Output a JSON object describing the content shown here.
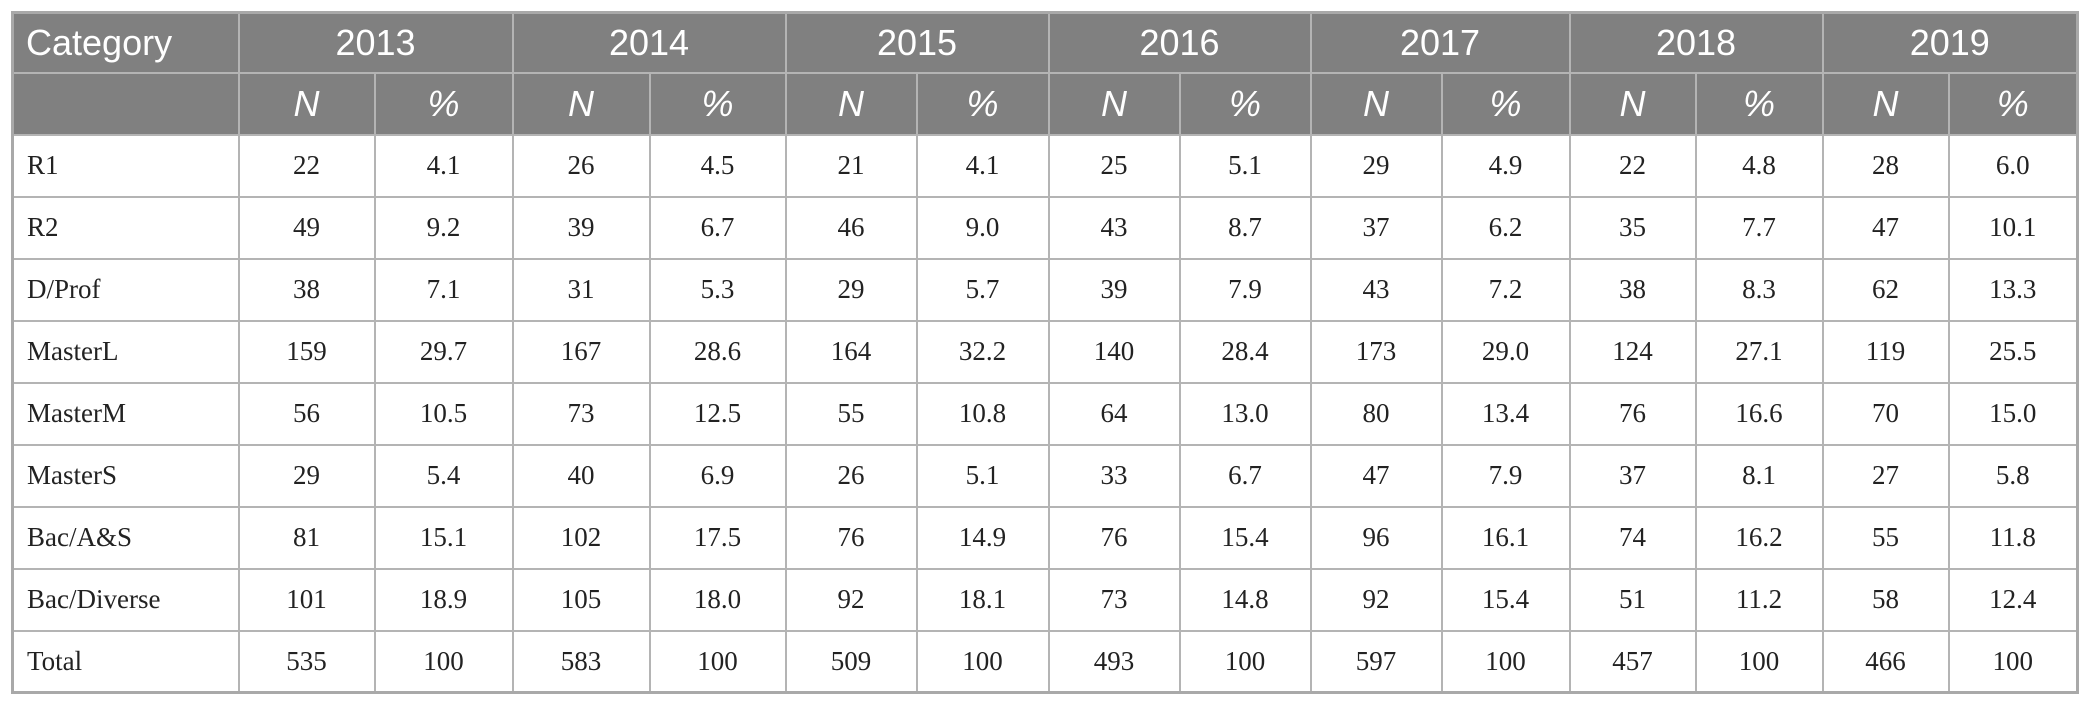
{
  "table": {
    "category_header": "Category",
    "years": [
      "2013",
      "2014",
      "2015",
      "2016",
      "2017",
      "2018",
      "2019"
    ],
    "sub_headers": {
      "n": "N",
      "pct": "%"
    },
    "rows": [
      {
        "category": "R1",
        "values": [
          "22",
          "4.1",
          "26",
          "4.5",
          "21",
          "4.1",
          "25",
          "5.1",
          "29",
          "4.9",
          "22",
          "4.8",
          "28",
          "6.0"
        ]
      },
      {
        "category": "R2",
        "values": [
          "49",
          "9.2",
          "39",
          "6.7",
          "46",
          "9.0",
          "43",
          "8.7",
          "37",
          "6.2",
          "35",
          "7.7",
          "47",
          "10.1"
        ]
      },
      {
        "category": "D/Prof",
        "values": [
          "38",
          "7.1",
          "31",
          "5.3",
          "29",
          "5.7",
          "39",
          "7.9",
          "43",
          "7.2",
          "38",
          "8.3",
          "62",
          "13.3"
        ]
      },
      {
        "category": "MasterL",
        "values": [
          "159",
          "29.7",
          "167",
          "28.6",
          "164",
          "32.2",
          "140",
          "28.4",
          "173",
          "29.0",
          "124",
          "27.1",
          "119",
          "25.5"
        ]
      },
      {
        "category": "MasterM",
        "values": [
          "56",
          "10.5",
          "73",
          "12.5",
          "55",
          "10.8",
          "64",
          "13.0",
          "80",
          "13.4",
          "76",
          "16.6",
          "70",
          "15.0"
        ]
      },
      {
        "category": "MasterS",
        "values": [
          "29",
          "5.4",
          "40",
          "6.9",
          "26",
          "5.1",
          "33",
          "6.7",
          "47",
          "7.9",
          "37",
          "8.1",
          "27",
          "5.8"
        ]
      },
      {
        "category": "Bac/A&S",
        "values": [
          "81",
          "15.1",
          "102",
          "17.5",
          "76",
          "14.9",
          "76",
          "15.4",
          "96",
          "16.1",
          "74",
          "16.2",
          "55",
          "11.8"
        ]
      },
      {
        "category": "Bac/Diverse",
        "values": [
          "101",
          "18.9",
          "105",
          "18.0",
          "92",
          "18.1",
          "73",
          "14.8",
          "92",
          "15.4",
          "51",
          "11.2",
          "58",
          "12.4"
        ]
      },
      {
        "category": "Total",
        "values": [
          "535",
          "100",
          "583",
          "100",
          "509",
          "100",
          "493",
          "100",
          "597",
          "100",
          "457",
          "100",
          "466",
          "100"
        ]
      }
    ]
  }
}
